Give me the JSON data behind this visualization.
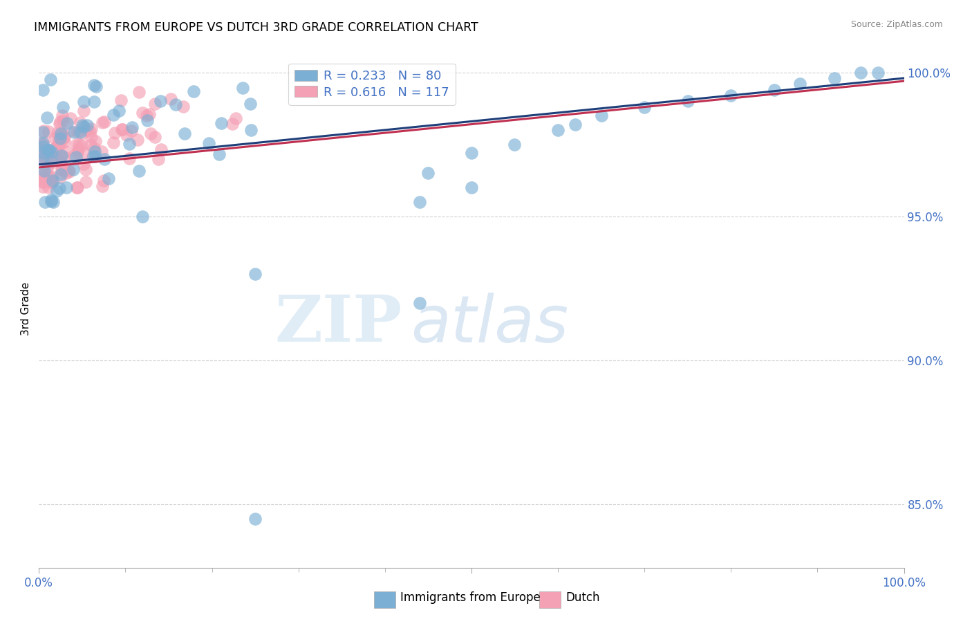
{
  "title": "IMMIGRANTS FROM EUROPE VS DUTCH 3RD GRADE CORRELATION CHART",
  "source": "Source: ZipAtlas.com",
  "ylabel": "3rd Grade",
  "y_ticks": [
    0.85,
    0.9,
    0.95,
    1.0
  ],
  "y_tick_labels": [
    "85.0%",
    "90.0%",
    "95.0%",
    "100.0%"
  ],
  "blue_R": 0.233,
  "blue_N": 80,
  "pink_R": 0.616,
  "pink_N": 117,
  "blue_color": "#7bafd4",
  "pink_color": "#f4a0b5",
  "blue_line_color": "#1f3f7a",
  "pink_line_color": "#c03050",
  "tick_label_color": "#4472c4",
  "grid_color": "#cccccc",
  "watermark_zip": "ZIP",
  "watermark_atlas": "atlas",
  "legend_label_blue": "Immigrants from Europe",
  "legend_label_pink": "Dutch",
  "blue_seed": 42,
  "pink_seed": 7
}
